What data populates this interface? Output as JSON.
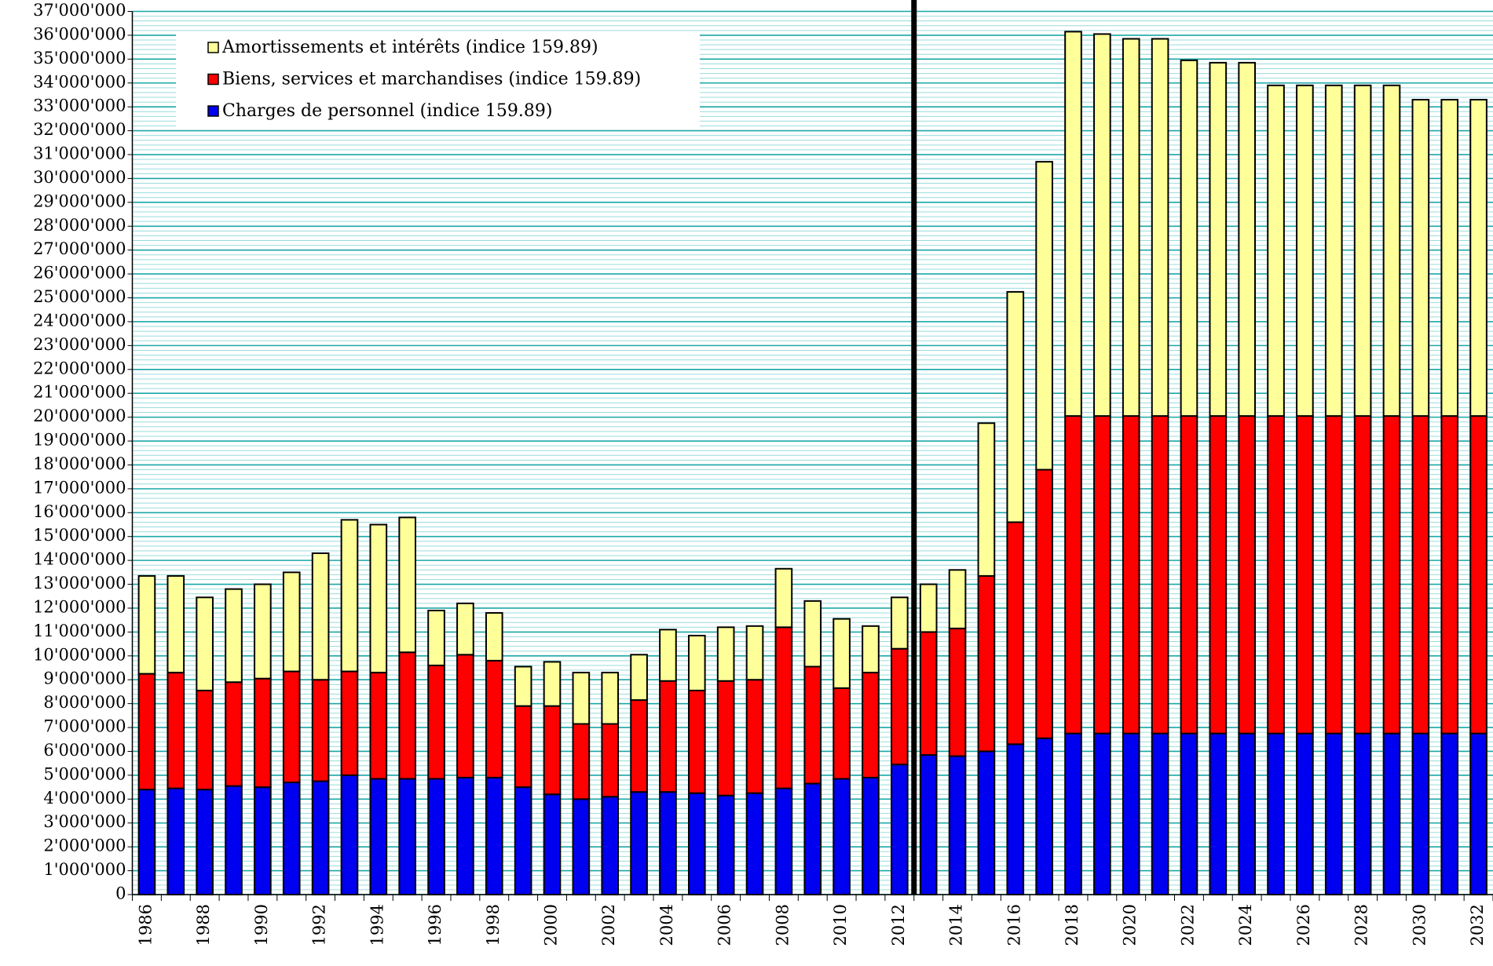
{
  "chart_data": {
    "type": "stacked-bar",
    "categories": [
      "1986",
      null,
      "1988",
      null,
      "1990",
      null,
      "1992",
      null,
      "1994",
      null,
      "1996",
      null,
      "1998",
      null,
      "2000",
      null,
      "2002",
      null,
      "2004",
      null,
      "2006",
      null,
      "2008",
      null,
      "2010",
      null,
      "2012",
      null,
      "2014",
      null,
      "2016",
      null,
      "2018",
      null,
      "2020",
      null,
      "2022",
      null,
      "2024",
      null,
      "2026",
      null,
      "2028",
      null,
      "2030",
      null,
      "2032"
    ],
    "series": [
      {
        "name": "Charges de personnel (indice 159.89)",
        "color": "#0000f0",
        "values": [
          4400000,
          4450000,
          4400000,
          4550000,
          4500000,
          4700000,
          4750000,
          5000000,
          4850000,
          4850000,
          4850000,
          4900000,
          4900000,
          4500000,
          4200000,
          4000000,
          4100000,
          4300000,
          4300000,
          4250000,
          4150000,
          4250000,
          4450000,
          4650000,
          4850000,
          4900000,
          5450000,
          5850000,
          5800000,
          6000000,
          6300000,
          6550000,
          6750000,
          6750000,
          6750000,
          6750000,
          6750000,
          6750000,
          6750000,
          6750000,
          6750000,
          6750000,
          6750000,
          6750000,
          6750000,
          6750000,
          6750000
        ]
      },
      {
        "name": "Biens, services et marchandises (indice 159.89)",
        "color": "#ff0000",
        "values": [
          4850000,
          4850000,
          4150000,
          4350000,
          4550000,
          4650000,
          4250000,
          4350000,
          4450000,
          5300000,
          4750000,
          5150000,
          4900000,
          3400000,
          3700000,
          3150000,
          3050000,
          3850000,
          4650000,
          4300000,
          4800000,
          4750000,
          6750000,
          4900000,
          3800000,
          4400000,
          4850000,
          5150000,
          5350000,
          7350000,
          9300000,
          11250000,
          13300000,
          13300000,
          13300000,
          13300000,
          13300000,
          13300000,
          13300000,
          13300000,
          13300000,
          13300000,
          13300000,
          13300000,
          13300000,
          13300000,
          13300000
        ]
      },
      {
        "name": "Amortissements et intérêts (indice 159.89)",
        "color": "#ffff99",
        "values": [
          4100000,
          4050000,
          3900000,
          3900000,
          3950000,
          4150000,
          5300000,
          6350000,
          6200000,
          5650000,
          2300000,
          2150000,
          2000000,
          1650000,
          1850000,
          2150000,
          2150000,
          1900000,
          2150000,
          2300000,
          2250000,
          2250000,
          2450000,
          2750000,
          2900000,
          1950000,
          2150000,
          2000000,
          2450000,
          6400000,
          9650000,
          12900000,
          16100000,
          16000000,
          15800000,
          15800000,
          14900000,
          14800000,
          14800000,
          13850000,
          13850000,
          13850000,
          13850000,
          13850000,
          13250000,
          13250000,
          13250000
        ]
      }
    ],
    "ylim": [
      0,
      37000000
    ],
    "yticks": [
      0,
      {
        "value": 1000000,
        "label": "1'000'000"
      },
      {
        "value": 2000000,
        "label": "2'000'000"
      },
      {
        "value": 3000000,
        "label": "3'000'000"
      },
      {
        "value": 4000000,
        "label": "4'000'000"
      },
      {
        "value": 5000000,
        "label": "5'000'000"
      },
      {
        "value": 6000000,
        "label": "6'000'000"
      },
      {
        "value": 7000000,
        "label": "7'000'000"
      },
      {
        "value": 8000000,
        "label": "8'000'000"
      },
      {
        "value": 9000000,
        "label": "9'000'000"
      },
      {
        "value": 10000000,
        "label": "10'000'000"
      },
      {
        "value": 11000000,
        "label": "11'000'000"
      },
      {
        "value": 12000000,
        "label": "12'000'000"
      },
      {
        "value": 13000000,
        "label": "13'000'000"
      },
      {
        "value": 14000000,
        "label": "14'000'000"
      },
      {
        "value": 15000000,
        "label": "15'000'000"
      },
      {
        "value": 16000000,
        "label": "16'000'000"
      },
      {
        "value": 17000000,
        "label": "17'000'000"
      },
      {
        "value": 18000000,
        "label": "18'000'000"
      },
      {
        "value": 19000000,
        "label": "19'000'000"
      },
      {
        "value": 20000000,
        "label": "20'000'000"
      },
      {
        "value": 21000000,
        "label": "21'000'000"
      },
      {
        "value": 22000000,
        "label": "22'000'000"
      },
      {
        "value": 23000000,
        "label": "23'000'000"
      },
      {
        "value": 24000000,
        "label": "24'000'000"
      },
      {
        "value": 25000000,
        "label": "25'000'000"
      },
      {
        "value": 26000000,
        "label": "26'000'000"
      },
      {
        "value": 27000000,
        "label": "27'000'000"
      },
      {
        "value": 28000000,
        "label": "28'000'000"
      },
      {
        "value": 29000000,
        "label": "29'000'000"
      },
      {
        "value": 30000000,
        "label": "30'000'000"
      },
      {
        "value": 31000000,
        "label": "31'000'000"
      },
      {
        "value": 32000000,
        "label": "32'000'000"
      },
      {
        "value": 33000000,
        "label": "33'000'000"
      },
      {
        "value": 34000000,
        "label": "34'000'000"
      },
      {
        "value": 35000000,
        "label": "35'000'000"
      },
      {
        "value": 36000000,
        "label": "36'000'000"
      },
      {
        "value": 37000000,
        "label": "37'000'000"
      }
    ],
    "grid": true,
    "minor_grid": true,
    "legend": "top-left",
    "divider_after": "2012"
  }
}
